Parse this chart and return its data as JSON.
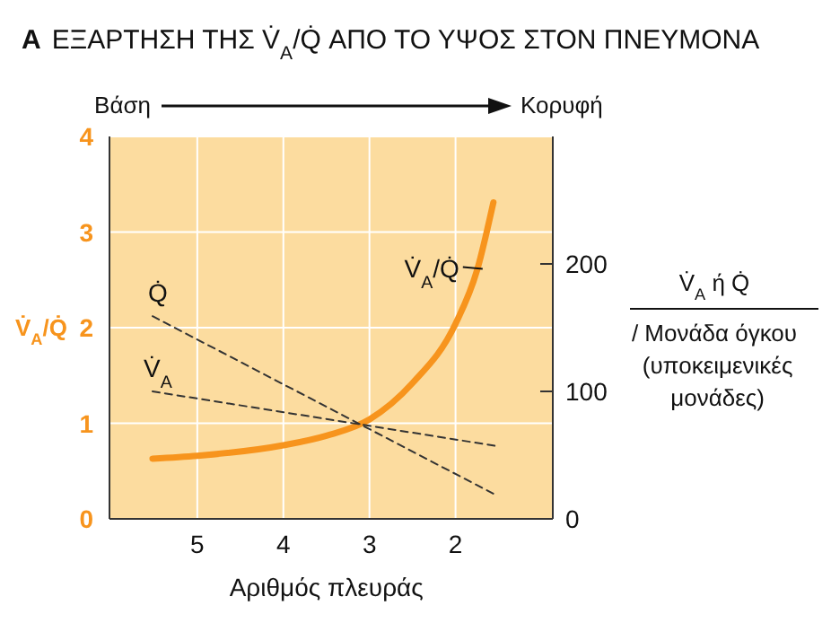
{
  "chart_data": {
    "type": "line",
    "title": "A ΕΞΑΡΤΗΣΗ ΤΗΣ V̇$_{A}$/Q̇ ΑΠΟ ΤΟ ΥΨΟΣ ΣΤΟΝ ΠΝΕΥΜΟΝΑ",
    "xlabel": "Αριθμός πλευράς",
    "ylabel": "V̇$_{A}$/Q̇",
    "y2label": "V̇$_{A}$ ή Q̇ / Μονάδα όγκου (υποκειμενικές μονάδες)",
    "annotations": [
      "Βάση",
      "Κορυφή"
    ],
    "xlim": [
      6.02,
      0.87
    ],
    "xticks": [
      5,
      4,
      3,
      2
    ],
    "ylim": [
      0,
      4
    ],
    "yticks": [
      0,
      1,
      2,
      3,
      4
    ],
    "y2lim": [
      0,
      300
    ],
    "y2ticks": [
      0,
      100,
      200
    ],
    "grid": true,
    "marker": "none",
    "series": [
      {
        "name": "V̇$_{A}$/Q̇",
        "color": "#f7941d",
        "line_style": "solid",
        "x": [
          5.52,
          5,
          4,
          3.5,
          3,
          2.5,
          2,
          1.75,
          1.56
        ],
        "values": [
          0.63,
          0.66,
          0.77,
          0.87,
          1.04,
          1.42,
          2.04,
          2.6,
          3.31
        ]
      },
      {
        "name": "Q̇",
        "color": "#333333",
        "line_style": "dashed",
        "axis": "y2",
        "x": [
          5.52,
          1.51
        ],
        "values": [
          159,
          18
        ]
      },
      {
        "name": "V̇$_{A}$",
        "color": "#333333",
        "line_style": "dashed",
        "axis": "y2",
        "x": [
          5.52,
          1.51
        ],
        "values": [
          100,
          57
        ]
      }
    ]
  }
}
